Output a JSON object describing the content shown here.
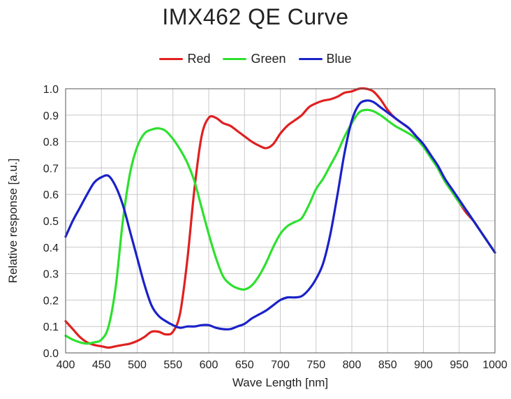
{
  "chart_data": {
    "type": "line",
    "title": "IMX462  QE Curve",
    "xlabel": "Wave Length [nm]",
    "ylabel": "Relative response [a.u.]",
    "xlim": [
      400,
      1000
    ],
    "ylim": [
      0.0,
      1.0
    ],
    "x_ticks": [
      "400",
      "450",
      "500",
      "550",
      "600",
      "650",
      "700",
      "750",
      "800",
      "850",
      "900",
      "950",
      "1000"
    ],
    "y_ticks": [
      "0.0",
      "0.1",
      "0.2",
      "0.3",
      "0.4",
      "0.5",
      "0.6",
      "0.7",
      "0.8",
      "0.9",
      "1.0"
    ],
    "grid": true,
    "legend": "top-center",
    "series": [
      {
        "name": "Red",
        "color": "#e02020",
        "points": [
          [
            400,
            0.12
          ],
          [
            410,
            0.09
          ],
          [
            420,
            0.06
          ],
          [
            430,
            0.04
          ],
          [
            440,
            0.03
          ],
          [
            450,
            0.025
          ],
          [
            460,
            0.02
          ],
          [
            470,
            0.025
          ],
          [
            480,
            0.03
          ],
          [
            490,
            0.035
          ],
          [
            500,
            0.045
          ],
          [
            510,
            0.06
          ],
          [
            520,
            0.08
          ],
          [
            530,
            0.08
          ],
          [
            540,
            0.07
          ],
          [
            550,
            0.08
          ],
          [
            560,
            0.15
          ],
          [
            570,
            0.35
          ],
          [
            580,
            0.62
          ],
          [
            590,
            0.82
          ],
          [
            600,
            0.89
          ],
          [
            610,
            0.89
          ],
          [
            620,
            0.87
          ],
          [
            630,
            0.86
          ],
          [
            640,
            0.84
          ],
          [
            650,
            0.82
          ],
          [
            660,
            0.8
          ],
          [
            670,
            0.785
          ],
          [
            680,
            0.775
          ],
          [
            690,
            0.79
          ],
          [
            700,
            0.83
          ],
          [
            710,
            0.86
          ],
          [
            720,
            0.88
          ],
          [
            730,
            0.9
          ],
          [
            740,
            0.93
          ],
          [
            750,
            0.945
          ],
          [
            760,
            0.955
          ],
          [
            770,
            0.96
          ],
          [
            780,
            0.97
          ],
          [
            790,
            0.985
          ],
          [
            800,
            0.99
          ],
          [
            810,
            1.0
          ],
          [
            820,
            1.0
          ],
          [
            830,
            0.99
          ],
          [
            840,
            0.96
          ],
          [
            850,
            0.92
          ],
          [
            860,
            0.89
          ],
          [
            870,
            0.87
          ],
          [
            880,
            0.85
          ],
          [
            890,
            0.82
          ],
          [
            900,
            0.79
          ],
          [
            910,
            0.75
          ],
          [
            920,
            0.7
          ],
          [
            930,
            0.65
          ],
          [
            940,
            0.61
          ],
          [
            950,
            0.57
          ],
          [
            960,
            0.53
          ],
          [
            970,
            0.5
          ],
          [
            980,
            0.46
          ],
          [
            990,
            0.42
          ],
          [
            1000,
            0.38
          ]
        ]
      },
      {
        "name": "Green",
        "color": "#2ee02e",
        "points": [
          [
            400,
            0.065
          ],
          [
            410,
            0.05
          ],
          [
            420,
            0.04
          ],
          [
            430,
            0.035
          ],
          [
            440,
            0.04
          ],
          [
            450,
            0.05
          ],
          [
            460,
            0.1
          ],
          [
            470,
            0.25
          ],
          [
            480,
            0.5
          ],
          [
            490,
            0.68
          ],
          [
            500,
            0.78
          ],
          [
            510,
            0.83
          ],
          [
            520,
            0.845
          ],
          [
            530,
            0.85
          ],
          [
            540,
            0.84
          ],
          [
            550,
            0.81
          ],
          [
            560,
            0.77
          ],
          [
            570,
            0.72
          ],
          [
            580,
            0.65
          ],
          [
            590,
            0.55
          ],
          [
            600,
            0.45
          ],
          [
            610,
            0.36
          ],
          [
            620,
            0.29
          ],
          [
            630,
            0.26
          ],
          [
            640,
            0.245
          ],
          [
            650,
            0.24
          ],
          [
            660,
            0.255
          ],
          [
            670,
            0.29
          ],
          [
            680,
            0.34
          ],
          [
            690,
            0.4
          ],
          [
            700,
            0.45
          ],
          [
            710,
            0.48
          ],
          [
            720,
            0.495
          ],
          [
            730,
            0.51
          ],
          [
            740,
            0.56
          ],
          [
            750,
            0.62
          ],
          [
            760,
            0.66
          ],
          [
            770,
            0.71
          ],
          [
            780,
            0.76
          ],
          [
            790,
            0.82
          ],
          [
            800,
            0.87
          ],
          [
            810,
            0.91
          ],
          [
            820,
            0.92
          ],
          [
            830,
            0.915
          ],
          [
            840,
            0.9
          ],
          [
            850,
            0.88
          ],
          [
            860,
            0.86
          ],
          [
            870,
            0.845
          ],
          [
            880,
            0.83
          ],
          [
            890,
            0.81
          ],
          [
            900,
            0.78
          ],
          [
            910,
            0.74
          ],
          [
            920,
            0.7
          ],
          [
            930,
            0.65
          ],
          [
            940,
            0.61
          ],
          [
            950,
            0.57
          ],
          [
            960,
            0.54
          ],
          [
            970,
            0.5
          ],
          [
            980,
            0.46
          ],
          [
            990,
            0.42
          ],
          [
            1000,
            0.38
          ]
        ]
      },
      {
        "name": "Blue",
        "color": "#1a22c8",
        "points": [
          [
            400,
            0.44
          ],
          [
            410,
            0.5
          ],
          [
            420,
            0.55
          ],
          [
            430,
            0.6
          ],
          [
            440,
            0.645
          ],
          [
            450,
            0.665
          ],
          [
            460,
            0.67
          ],
          [
            470,
            0.63
          ],
          [
            480,
            0.56
          ],
          [
            490,
            0.46
          ],
          [
            500,
            0.36
          ],
          [
            510,
            0.26
          ],
          [
            520,
            0.18
          ],
          [
            530,
            0.14
          ],
          [
            540,
            0.12
          ],
          [
            550,
            0.105
          ],
          [
            560,
            0.095
          ],
          [
            570,
            0.1
          ],
          [
            580,
            0.1
          ],
          [
            590,
            0.105
          ],
          [
            600,
            0.105
          ],
          [
            610,
            0.095
          ],
          [
            620,
            0.09
          ],
          [
            630,
            0.09
          ],
          [
            640,
            0.1
          ],
          [
            650,
            0.11
          ],
          [
            660,
            0.13
          ],
          [
            670,
            0.145
          ],
          [
            680,
            0.16
          ],
          [
            690,
            0.18
          ],
          [
            700,
            0.2
          ],
          [
            710,
            0.21
          ],
          [
            720,
            0.21
          ],
          [
            730,
            0.215
          ],
          [
            740,
            0.24
          ],
          [
            750,
            0.28
          ],
          [
            760,
            0.34
          ],
          [
            770,
            0.45
          ],
          [
            780,
            0.6
          ],
          [
            790,
            0.76
          ],
          [
            800,
            0.88
          ],
          [
            810,
            0.94
          ],
          [
            820,
            0.955
          ],
          [
            830,
            0.95
          ],
          [
            840,
            0.93
          ],
          [
            850,
            0.91
          ],
          [
            860,
            0.89
          ],
          [
            870,
            0.87
          ],
          [
            880,
            0.85
          ],
          [
            890,
            0.82
          ],
          [
            900,
            0.79
          ],
          [
            910,
            0.75
          ],
          [
            920,
            0.71
          ],
          [
            930,
            0.66
          ],
          [
            940,
            0.62
          ],
          [
            950,
            0.58
          ],
          [
            960,
            0.54
          ],
          [
            970,
            0.5
          ],
          [
            980,
            0.46
          ],
          [
            990,
            0.42
          ],
          [
            1000,
            0.38
          ]
        ]
      }
    ]
  }
}
